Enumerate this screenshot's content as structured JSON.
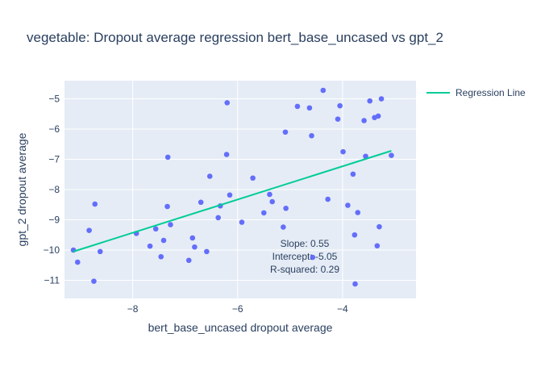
{
  "chart_data": {
    "type": "scatter",
    "title": "vegetable: Dropout average regression bert_base_uncased vs gpt_2",
    "xlabel": "bert_base_uncased dropout average",
    "ylabel": "gpt_2 dropout average",
    "xlim": [
      -9.3,
      -2.6
    ],
    "ylim": [
      -11.6,
      -4.4
    ],
    "x_ticks": [
      -8,
      -6,
      -4
    ],
    "x_tick_labels": [
      "−8",
      "−6",
      "−4"
    ],
    "y_ticks": [
      -11,
      -10,
      -9,
      -8,
      -7,
      -6,
      -5
    ],
    "y_tick_labels": [
      "−11",
      "−10",
      "−9",
      "−8",
      "−7",
      "−6",
      "−5"
    ],
    "grid": true,
    "legend_position": "top-right",
    "colors": {
      "points": "#636efa",
      "regression": "#00cc96",
      "plot_bg": "#e5ecf6",
      "text": "#2a3f5f"
    },
    "series": [
      {
        "type": "scatter",
        "points": [
          [
            -9.13,
            -10.0
          ],
          [
            -9.05,
            -10.4
          ],
          [
            -8.83,
            -9.35
          ],
          [
            -8.72,
            -8.48
          ],
          [
            -8.74,
            -11.03
          ],
          [
            -8.62,
            -10.05
          ],
          [
            -7.93,
            -9.45
          ],
          [
            -7.67,
            -9.87
          ],
          [
            -7.56,
            -9.3
          ],
          [
            -7.46,
            -10.22
          ],
          [
            -7.41,
            -9.68
          ],
          [
            -7.33,
            -6.93
          ],
          [
            -7.34,
            -8.56
          ],
          [
            -7.28,
            -9.16
          ],
          [
            -6.93,
            -10.34
          ],
          [
            -6.86,
            -9.6
          ],
          [
            -6.82,
            -9.9
          ],
          [
            -6.7,
            -8.42
          ],
          [
            -6.59,
            -10.05
          ],
          [
            -6.53,
            -7.56
          ],
          [
            -6.37,
            -8.93
          ],
          [
            -6.33,
            -8.54
          ],
          [
            -6.2,
            -5.13
          ],
          [
            -6.21,
            -6.84
          ],
          [
            -6.15,
            -8.18
          ],
          [
            -5.92,
            -9.08
          ],
          [
            -5.71,
            -7.62
          ],
          [
            -5.5,
            -8.77
          ],
          [
            -5.39,
            -8.16
          ],
          [
            -5.34,
            -8.4
          ],
          [
            -5.13,
            -9.24
          ],
          [
            -5.09,
            -6.1
          ],
          [
            -5.08,
            -8.62
          ],
          [
            -4.86,
            -5.25
          ],
          [
            -4.63,
            -5.3
          ],
          [
            -4.59,
            -6.22
          ],
          [
            -4.57,
            -10.24
          ],
          [
            -4.37,
            -4.72
          ],
          [
            -4.28,
            -8.32
          ],
          [
            -4.09,
            -5.67
          ],
          [
            -4.05,
            -5.23
          ],
          [
            -3.99,
            -6.75
          ],
          [
            -3.9,
            -8.52
          ],
          [
            -3.8,
            -7.49
          ],
          [
            -3.77,
            -9.5
          ],
          [
            -3.76,
            -11.12
          ],
          [
            -3.71,
            -8.76
          ],
          [
            -3.59,
            -5.72
          ],
          [
            -3.56,
            -6.9
          ],
          [
            -3.48,
            -5.07
          ],
          [
            -3.39,
            -5.62
          ],
          [
            -3.34,
            -9.86
          ],
          [
            -3.32,
            -5.57
          ],
          [
            -3.3,
            -9.23
          ],
          [
            -3.26,
            -5.0
          ],
          [
            -3.07,
            -6.87
          ]
        ]
      },
      {
        "name": "Regression Line",
        "type": "line",
        "x": [
          -9.13,
          -3.07
        ],
        "y": [
          -10.05,
          -6.72
        ]
      }
    ],
    "annotation": [
      "Slope: 0.55",
      "Intercept: -5.05",
      "R-squared: 0.29"
    ]
  }
}
